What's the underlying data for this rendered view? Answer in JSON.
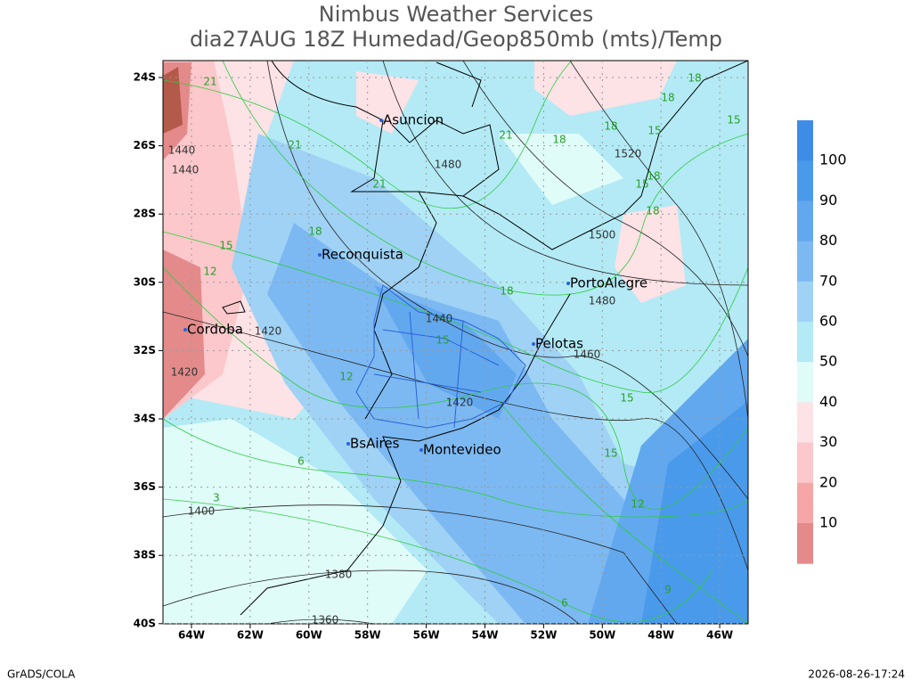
{
  "header": {
    "title": "Nimbus Weather Services",
    "subtitle": "dia27AUG 18Z Humedad/Geop850mb (mts)/Temp"
  },
  "map": {
    "lat_labels": [
      "24S",
      "26S",
      "28S",
      "30S",
      "32S",
      "34S",
      "36S",
      "38S",
      "40S"
    ],
    "lon_labels": [
      "64W",
      "62W",
      "60W",
      "58W",
      "56W",
      "54W",
      "52W",
      "50W",
      "48W",
      "46W"
    ],
    "cities": [
      "Asuncion",
      "Reconquista",
      "Cordoba",
      "PortoAlegre",
      "Pelotas",
      "BsAires",
      "Montevideo"
    ],
    "geopotential_labels": [
      "1520",
      "1500",
      "1480",
      "1480",
      "1460",
      "1440",
      "1440",
      "1440",
      "1420",
      "1420",
      "1420",
      "1400",
      "1380",
      "1360"
    ],
    "temperature_labels": [
      "21",
      "21",
      "21",
      "21",
      "18",
      "18",
      "18",
      "18",
      "15",
      "15",
      "15",
      "18",
      "18",
      "18",
      "15",
      "12",
      "18",
      "15",
      "12",
      "15",
      "15",
      "12",
      "9",
      "6",
      "6",
      "3"
    ]
  },
  "colorbar": {
    "levels": [
      100,
      90,
      80,
      70,
      60,
      50,
      40,
      30,
      20,
      10
    ],
    "colors": [
      "#3c8ce8",
      "#4a9aeb",
      "#62a8ef",
      "#7cb9f2",
      "#9fd2f5",
      "#b3eaf5",
      "#e0fcf9",
      "#fde2e6",
      "#fcc8cb",
      "#f6a6a6",
      "#e48a8a",
      "#e46e6e"
    ]
  },
  "footer": {
    "left": "GrADS/COLA",
    "right": "2026-08-26-17:24"
  }
}
